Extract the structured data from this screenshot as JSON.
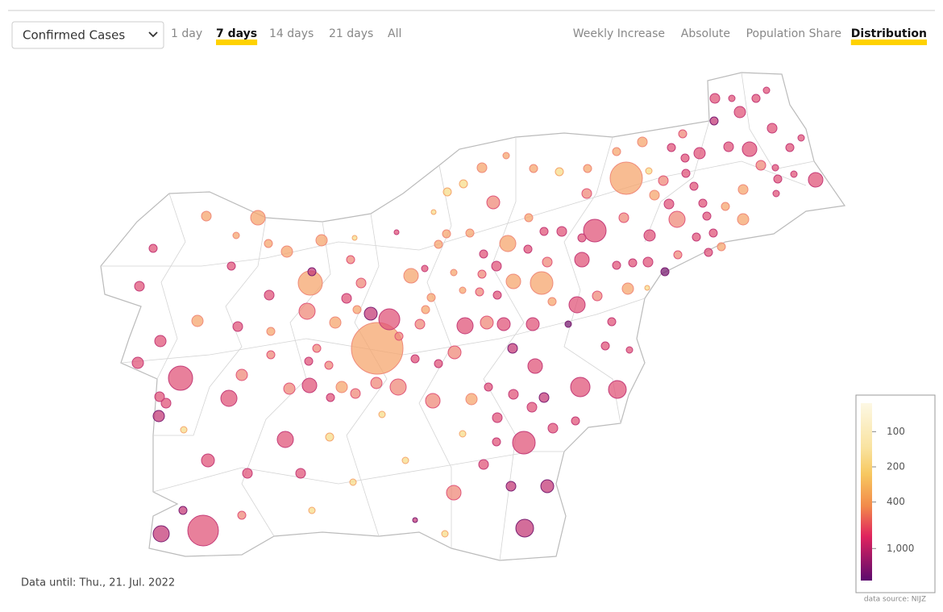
{
  "controls": {
    "dropdown": "Confirmed Cases",
    "periods": [
      "1 day",
      "7 days",
      "14 days",
      "21 days",
      "All"
    ],
    "selected_period": 1,
    "views": [
      "Weekly Increase",
      "Absolute",
      "Population Share",
      "Distribution"
    ],
    "selected_view": 3
  },
  "map": {
    "date_note": "Data until: Thu., 21. Jul. 2022",
    "source": "data source: NIJZ",
    "legend": {
      "scale": "log",
      "lim": [
        57,
        1880
      ],
      "ticks": [
        100,
        200,
        400,
        {
          "value": 1000,
          "label": "1,000"
        }
      ]
    }
  }
}
